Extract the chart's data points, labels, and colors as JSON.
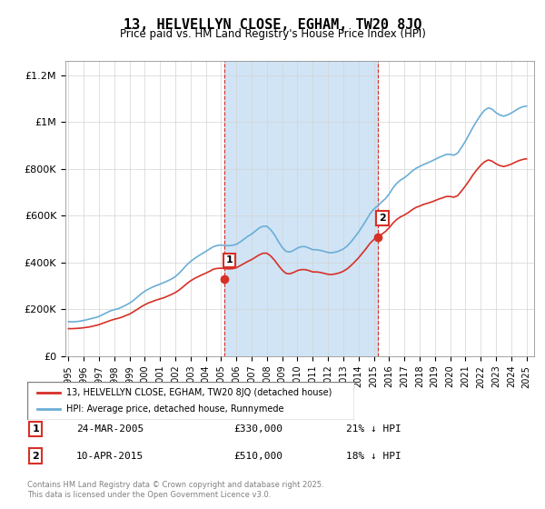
{
  "title": "13, HELVELLYN CLOSE, EGHAM, TW20 8JQ",
  "subtitle": "Price paid vs. HM Land Registry's House Price Index (HPI)",
  "ylabel_ticks": [
    "£0",
    "£200K",
    "£400K",
    "£600K",
    "£800K",
    "£1M",
    "£1.2M"
  ],
  "ylim": [
    0,
    1260000
  ],
  "xlim_start": 1995,
  "xlim_end": 2025.5,
  "sale1_date": 2005.23,
  "sale1_price": 330000,
  "sale1_label": "1",
  "sale2_date": 2015.27,
  "sale2_price": 510000,
  "sale2_label": "2",
  "hpi_color": "#6baed6",
  "price_color": "#d73027",
  "shade_color": "#d0e4f5",
  "marker_box_color": "#d73027",
  "legend_line1": "13, HELVELLYN CLOSE, EGHAM, TW20 8JQ (detached house)",
  "legend_line2": "HPI: Average price, detached house, Runnymede",
  "table_row1": [
    "1",
    "24-MAR-2005",
    "£330,000",
    "21% ↓ HPI"
  ],
  "table_row2": [
    "2",
    "10-APR-2015",
    "£510,000",
    "18% ↓ HPI"
  ],
  "footer": "Contains HM Land Registry data © Crown copyright and database right 2025.\nThis data is licensed under the Open Government Licence v3.0.",
  "hpi_data_x": [
    1995.0,
    1995.25,
    1995.5,
    1995.75,
    1996.0,
    1996.25,
    1996.5,
    1996.75,
    1997.0,
    1997.25,
    1997.5,
    1997.75,
    1998.0,
    1998.25,
    1998.5,
    1998.75,
    1999.0,
    1999.25,
    1999.5,
    1999.75,
    2000.0,
    2000.25,
    2000.5,
    2000.75,
    2001.0,
    2001.25,
    2001.5,
    2001.75,
    2002.0,
    2002.25,
    2002.5,
    2002.75,
    2003.0,
    2003.25,
    2003.5,
    2003.75,
    2004.0,
    2004.25,
    2004.5,
    2004.75,
    2005.0,
    2005.25,
    2005.5,
    2005.75,
    2006.0,
    2006.25,
    2006.5,
    2006.75,
    2007.0,
    2007.25,
    2007.5,
    2007.75,
    2008.0,
    2008.25,
    2008.5,
    2008.75,
    2009.0,
    2009.25,
    2009.5,
    2009.75,
    2010.0,
    2010.25,
    2010.5,
    2010.75,
    2011.0,
    2011.25,
    2011.5,
    2011.75,
    2012.0,
    2012.25,
    2012.5,
    2012.75,
    2013.0,
    2013.25,
    2013.5,
    2013.75,
    2014.0,
    2014.25,
    2014.5,
    2014.75,
    2015.0,
    2015.25,
    2015.5,
    2015.75,
    2016.0,
    2016.25,
    2016.5,
    2016.75,
    2017.0,
    2017.25,
    2017.5,
    2017.75,
    2018.0,
    2018.25,
    2018.5,
    2018.75,
    2019.0,
    2019.25,
    2019.5,
    2019.75,
    2020.0,
    2020.25,
    2020.5,
    2020.75,
    2021.0,
    2021.25,
    2021.5,
    2021.75,
    2022.0,
    2022.25,
    2022.5,
    2022.75,
    2023.0,
    2023.25,
    2023.5,
    2023.75,
    2024.0,
    2024.25,
    2024.5,
    2024.75,
    2025.0
  ],
  "hpi_data_y": [
    148000,
    147000,
    148000,
    150000,
    153000,
    157000,
    161000,
    165000,
    170000,
    178000,
    186000,
    194000,
    199000,
    203000,
    210000,
    218000,
    227000,
    238000,
    252000,
    266000,
    278000,
    287000,
    295000,
    302000,
    308000,
    315000,
    322000,
    330000,
    340000,
    355000,
    372000,
    390000,
    405000,
    417000,
    428000,
    438000,
    448000,
    458000,
    468000,
    473000,
    475000,
    473000,
    472000,
    474000,
    478000,
    488000,
    500000,
    512000,
    522000,
    535000,
    548000,
    555000,
    555000,
    540000,
    518000,
    490000,
    465000,
    448000,
    445000,
    452000,
    462000,
    468000,
    468000,
    462000,
    455000,
    455000,
    452000,
    448000,
    443000,
    442000,
    445000,
    450000,
    458000,
    470000,
    488000,
    508000,
    530000,
    555000,
    580000,
    608000,
    628000,
    642000,
    658000,
    672000,
    692000,
    718000,
    738000,
    752000,
    762000,
    775000,
    790000,
    802000,
    810000,
    818000,
    825000,
    832000,
    840000,
    848000,
    855000,
    862000,
    862000,
    858000,
    868000,
    892000,
    918000,
    948000,
    978000,
    1005000,
    1030000,
    1050000,
    1060000,
    1055000,
    1040000,
    1030000,
    1025000,
    1030000,
    1038000,
    1048000,
    1058000,
    1065000,
    1068000
  ],
  "price_data_x": [
    1995.0,
    1995.25,
    1995.5,
    1995.75,
    1996.0,
    1996.25,
    1996.5,
    1996.75,
    1997.0,
    1997.25,
    1997.5,
    1997.75,
    1998.0,
    1998.25,
    1998.5,
    1998.75,
    1999.0,
    1999.25,
    1999.5,
    1999.75,
    2000.0,
    2000.25,
    2000.5,
    2000.75,
    2001.0,
    2001.25,
    2001.5,
    2001.75,
    2002.0,
    2002.25,
    2002.5,
    2002.75,
    2003.0,
    2003.25,
    2003.5,
    2003.75,
    2004.0,
    2004.25,
    2004.5,
    2004.75,
    2005.0,
    2005.25,
    2005.5,
    2005.75,
    2006.0,
    2006.25,
    2006.5,
    2006.75,
    2007.0,
    2007.25,
    2007.5,
    2007.75,
    2008.0,
    2008.25,
    2008.5,
    2008.75,
    2009.0,
    2009.25,
    2009.5,
    2009.75,
    2010.0,
    2010.25,
    2010.5,
    2010.75,
    2011.0,
    2011.25,
    2011.5,
    2011.75,
    2012.0,
    2012.25,
    2012.5,
    2012.75,
    2013.0,
    2013.25,
    2013.5,
    2013.75,
    2014.0,
    2014.25,
    2014.5,
    2014.75,
    2015.0,
    2015.25,
    2015.5,
    2015.75,
    2016.0,
    2016.25,
    2016.5,
    2016.75,
    2017.0,
    2017.25,
    2017.5,
    2017.75,
    2018.0,
    2018.25,
    2018.5,
    2018.75,
    2019.0,
    2019.25,
    2019.5,
    2019.75,
    2020.0,
    2020.25,
    2020.5,
    2020.75,
    2021.0,
    2021.25,
    2021.5,
    2021.75,
    2022.0,
    2022.25,
    2022.5,
    2022.75,
    2023.0,
    2023.25,
    2023.5,
    2023.75,
    2024.0,
    2024.25,
    2024.5,
    2024.75,
    2025.0
  ],
  "price_data_y": [
    118000,
    118000,
    119000,
    120000,
    122000,
    124000,
    127000,
    131000,
    135000,
    141000,
    147000,
    153000,
    158000,
    162000,
    167000,
    174000,
    180000,
    190000,
    200000,
    211000,
    220000,
    228000,
    234000,
    240000,
    245000,
    250000,
    257000,
    264000,
    272000,
    283000,
    296000,
    310000,
    322000,
    332000,
    340000,
    348000,
    355000,
    363000,
    372000,
    375000,
    376000,
    374000,
    373000,
    374000,
    378000,
    387000,
    396000,
    405000,
    413000,
    423000,
    433000,
    440000,
    440000,
    428000,
    410000,
    388000,
    368000,
    354000,
    352000,
    358000,
    366000,
    370000,
    370000,
    366000,
    360000,
    360000,
    358000,
    354000,
    350000,
    349000,
    352000,
    356000,
    363000,
    373000,
    387000,
    403000,
    420000,
    440000,
    460000,
    482000,
    498000,
    510000,
    520000,
    532000,
    548000,
    568000,
    584000,
    595000,
    603000,
    613000,
    625000,
    635000,
    641000,
    648000,
    653000,
    658000,
    664000,
    671000,
    676000,
    682000,
    682000,
    679000,
    686000,
    706000,
    727000,
    750000,
    775000,
    796000,
    815000,
    830000,
    838000,
    833000,
    822000,
    814000,
    810000,
    814000,
    820000,
    828000,
    835000,
    840000,
    843000
  ]
}
